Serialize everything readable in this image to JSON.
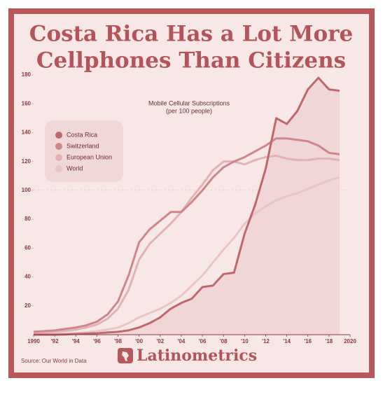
{
  "chart_data": {
    "type": "line",
    "title": [
      "Costa Rica Has a Lot More",
      "Cellphones Than Citizens"
    ],
    "annotation": [
      "Mobile Cellular Subscriptions",
      "(per 100 people)"
    ],
    "source": "Source: Our World in Data",
    "brand": "Latinometrics",
    "x": [
      1990,
      1991,
      1992,
      1993,
      1994,
      1995,
      1996,
      1997,
      1998,
      1999,
      2000,
      2001,
      2002,
      2003,
      2004,
      2005,
      2006,
      2007,
      2008,
      2009,
      2010,
      2011,
      2012,
      2013,
      2014,
      2015,
      2016,
      2017,
      2018,
      2019
    ],
    "series": [
      {
        "name": "Costa Rica",
        "color": "#c0676c",
        "area": true,
        "values": [
          0,
          0,
          0,
          0.2,
          0.5,
          0.7,
          1,
          1.5,
          2,
          3,
          5,
          8,
          12,
          18,
          22,
          25,
          33,
          34,
          42,
          43,
          70,
          90,
          115,
          150,
          146,
          155,
          170,
          178,
          170,
          169
        ]
      },
      {
        "name": "Switzerland",
        "color": "#cf868a",
        "values": [
          2,
          2.5,
          3,
          4,
          5,
          6.5,
          9,
          14,
          23,
          41,
          64,
          73,
          79,
          85,
          85,
          92,
          100,
          109,
          116,
          120,
          123,
          127,
          131,
          136,
          136,
          135,
          134,
          131,
          126,
          125
        ]
      },
      {
        "name": "European Union",
        "color": "#e2b2b4",
        "values": [
          1,
          1.5,
          2,
          2.5,
          3.5,
          5,
          7,
          11,
          18,
          31,
          52,
          63,
          70,
          77,
          85,
          95,
          104,
          114,
          120,
          120,
          118,
          121,
          123,
          124,
          122,
          121,
          121,
          122,
          122,
          121
        ]
      },
      {
        "name": "World",
        "color": "#eac4c5",
        "values": [
          0.2,
          0.3,
          0.4,
          0.6,
          1,
          1.6,
          2.5,
          3.5,
          5,
          8,
          12,
          15,
          18,
          22,
          27,
          34,
          41,
          50,
          59,
          67,
          77,
          84,
          89,
          93,
          96,
          98,
          101,
          104,
          107,
          109
        ]
      }
    ],
    "xlim": [
      1990,
      2020
    ],
    "xticks": [
      {
        "value": 1990,
        "label": "1990"
      },
      {
        "value": 1992,
        "label": "'92"
      },
      {
        "value": 1994,
        "label": "'94"
      },
      {
        "value": 1996,
        "label": "'96"
      },
      {
        "value": 1998,
        "label": "'98"
      },
      {
        "value": 2000,
        "label": "'00"
      },
      {
        "value": 2002,
        "label": "'02"
      },
      {
        "value": 2004,
        "label": "'04"
      },
      {
        "value": 2006,
        "label": "'06"
      },
      {
        "value": 2008,
        "label": "'08"
      },
      {
        "value": 2010,
        "label": "'10"
      },
      {
        "value": 2012,
        "label": "'12"
      },
      {
        "value": 2014,
        "label": "'14"
      },
      {
        "value": 2016,
        "label": "'16"
      },
      {
        "value": 2018,
        "label": "'18"
      },
      {
        "value": 2020,
        "label": "2020"
      }
    ],
    "ylim": [
      0,
      180
    ],
    "yticks": [
      20,
      40,
      60,
      80,
      100,
      120,
      140,
      160,
      180
    ],
    "reference_line": 100,
    "legend": "upper left"
  }
}
